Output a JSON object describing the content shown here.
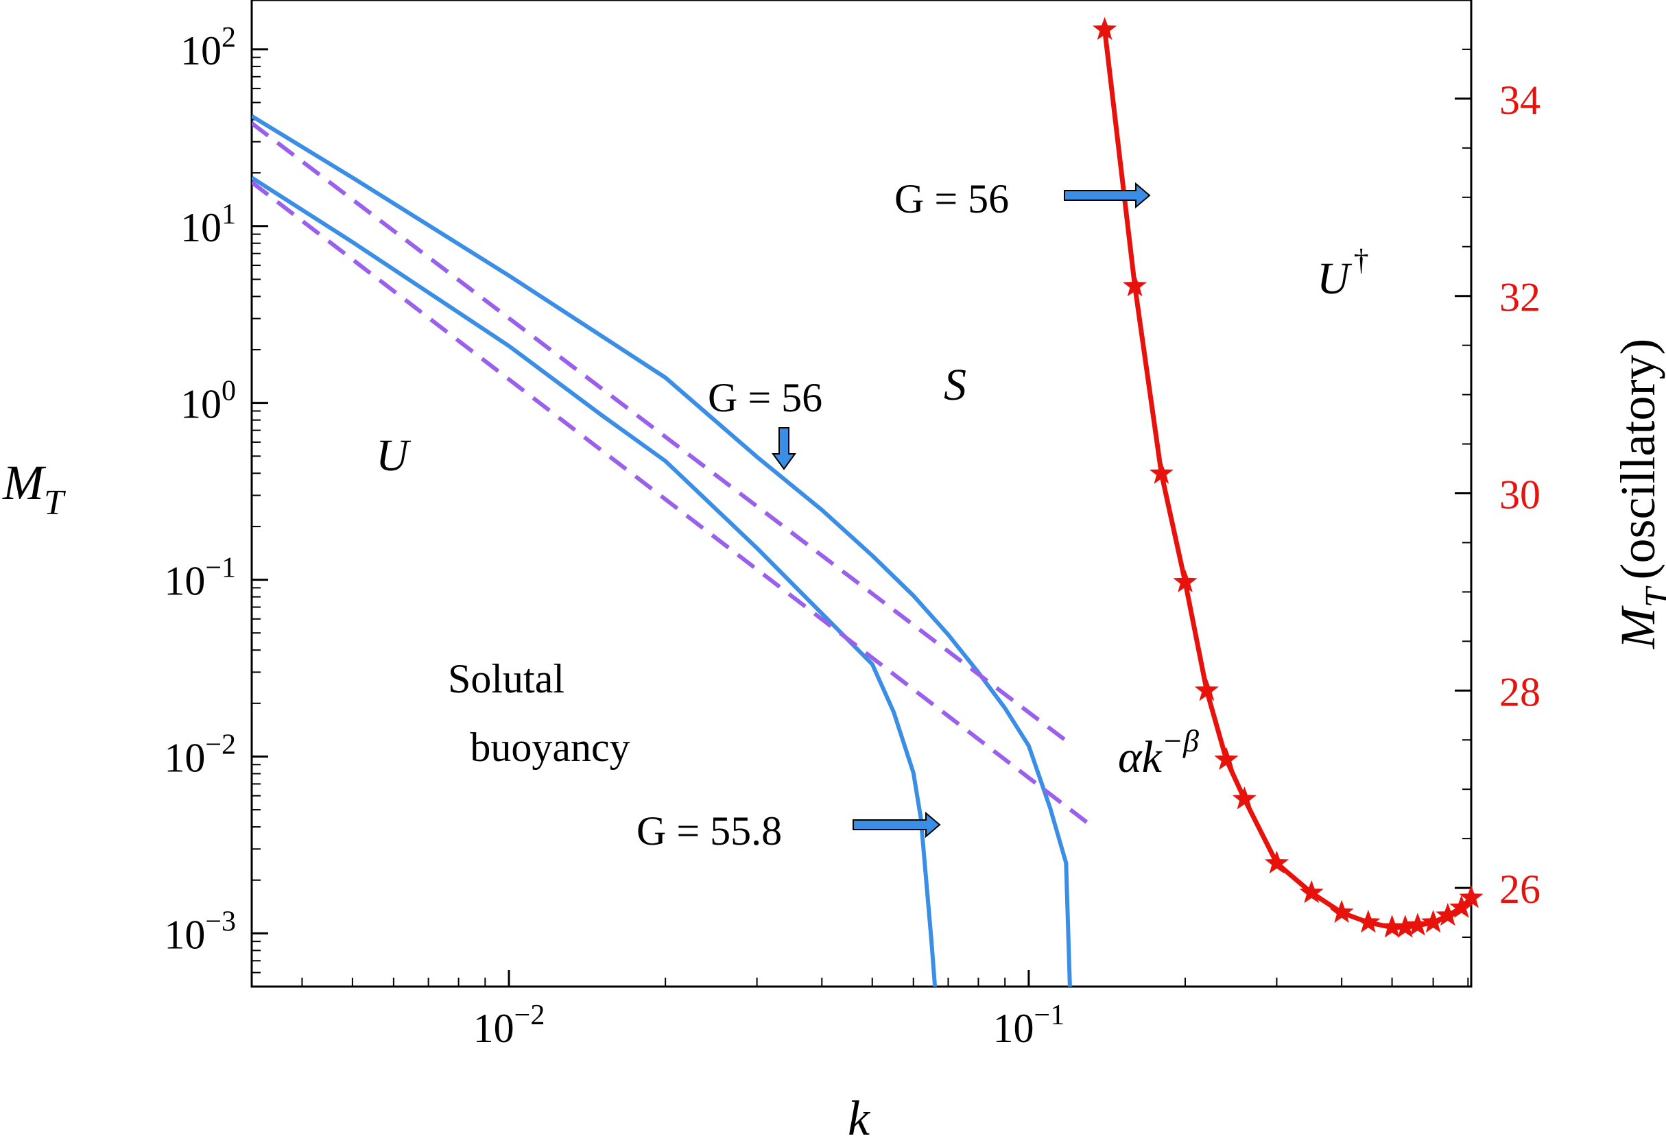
{
  "chart_data": {
    "type": "line",
    "xlabel": "k",
    "ylabel": "M",
    "ylabel_sub": "T",
    "y2label": "M",
    "y2label_sub": "T",
    "y2label_suffix": "(oscillatory)",
    "xscale": "log",
    "yscale": "log",
    "xlim": [
      0.0032,
      0.71
    ],
    "ylim": [
      0.0005,
      190
    ],
    "y2lim": [
      25,
      35
    ],
    "grid": false,
    "x_ticks": [
      {
        "value": 0.01,
        "base": "10",
        "exp": "−2"
      },
      {
        "value": 0.1,
        "base": "10",
        "exp": "−1"
      }
    ],
    "y_ticks": [
      {
        "value": 0.001,
        "base": "10",
        "exp": "−3"
      },
      {
        "value": 0.01,
        "base": "10",
        "exp": "−2"
      },
      {
        "value": 0.1,
        "base": "10",
        "exp": "−1"
      },
      {
        "value": 1,
        "base": "10",
        "exp": "0"
      },
      {
        "value": 10,
        "base": "10",
        "exp": "1"
      },
      {
        "value": 100,
        "base": "10",
        "exp": "2"
      }
    ],
    "y2_ticks": [
      26,
      28,
      30,
      32,
      34
    ],
    "series": [
      {
        "axis": "left",
        "color": "#3a8ee6",
        "style": "solid",
        "points": [
          [
            0.0032,
            41.9
          ],
          [
            0.005,
            18.8
          ],
          [
            0.01,
            5.25
          ],
          [
            0.02,
            1.39
          ],
          [
            0.03,
            0.495
          ],
          [
            0.04,
            0.248
          ],
          [
            0.05,
            0.137
          ],
          [
            0.06,
            0.0813
          ],
          [
            0.07,
            0.0489
          ],
          [
            0.08,
            0.0299
          ],
          [
            0.09,
            0.0188
          ],
          [
            0.1,
            0.0115
          ],
          [
            0.11,
            0.0051
          ],
          [
            0.118,
            0.0025
          ],
          [
            0.12,
            0.0005
          ]
        ]
      },
      {
        "axis": "left",
        "color": "#3a8ee6",
        "style": "solid",
        "points": [
          [
            0.0032,
            18.8
          ],
          [
            0.005,
            8.12
          ],
          [
            0.01,
            2.1
          ],
          [
            0.015,
            0.862
          ],
          [
            0.02,
            0.469
          ],
          [
            0.03,
            0.151
          ],
          [
            0.04,
            0.0644
          ],
          [
            0.05,
            0.0333
          ],
          [
            0.055,
            0.0178
          ],
          [
            0.06,
            0.0081
          ],
          [
            0.062,
            0.0045
          ],
          [
            0.065,
            0.0009
          ],
          [
            0.066,
            0.0005
          ]
        ]
      },
      {
        "axis": "left",
        "color": "#9a60ec",
        "style": "dashed",
        "points": [
          [
            0.0032,
            38.2
          ],
          [
            0.118,
            0.0123
          ]
        ]
      },
      {
        "axis": "left",
        "color": "#9a60ec",
        "style": "dashed",
        "points": [
          [
            0.0032,
            17.7
          ],
          [
            0.13,
            0.0042
          ]
        ]
      },
      {
        "axis": "right",
        "color": "#e8120c",
        "style": "solid",
        "marker": "star",
        "points": [
          [
            0.14,
            34.7
          ],
          [
            0.16,
            32.1
          ],
          [
            0.18,
            30.2
          ],
          [
            0.2,
            29.1
          ],
          [
            0.22,
            28.0
          ],
          [
            0.24,
            27.3
          ],
          [
            0.26,
            26.9
          ],
          [
            0.3,
            26.25
          ],
          [
            0.35,
            25.95
          ],
          [
            0.4,
            25.75
          ],
          [
            0.45,
            25.65
          ],
          [
            0.5,
            25.6
          ],
          [
            0.53,
            25.6
          ],
          [
            0.56,
            25.62
          ],
          [
            0.6,
            25.65
          ],
          [
            0.64,
            25.72
          ],
          [
            0.68,
            25.8
          ],
          [
            0.71,
            25.9
          ]
        ]
      }
    ],
    "annotations": {
      "region_u": "U",
      "region_s": "S",
      "region_udagger": "U",
      "dagger": "†",
      "solutal_line1": "Solutal",
      "solutal_line2": "buoyancy",
      "g56_top": "G = 56",
      "g56_mid": "G = 56",
      "g558": "G = 55.8",
      "power_law_alpha": "αk",
      "power_law_exp": "−β"
    },
    "colors": {
      "blue": "#3a8ee6",
      "purple": "#9a60ec",
      "red": "#e8120c",
      "arrow_fill": "#3a8ee6",
      "right_axis_text": "#e8120c"
    }
  }
}
